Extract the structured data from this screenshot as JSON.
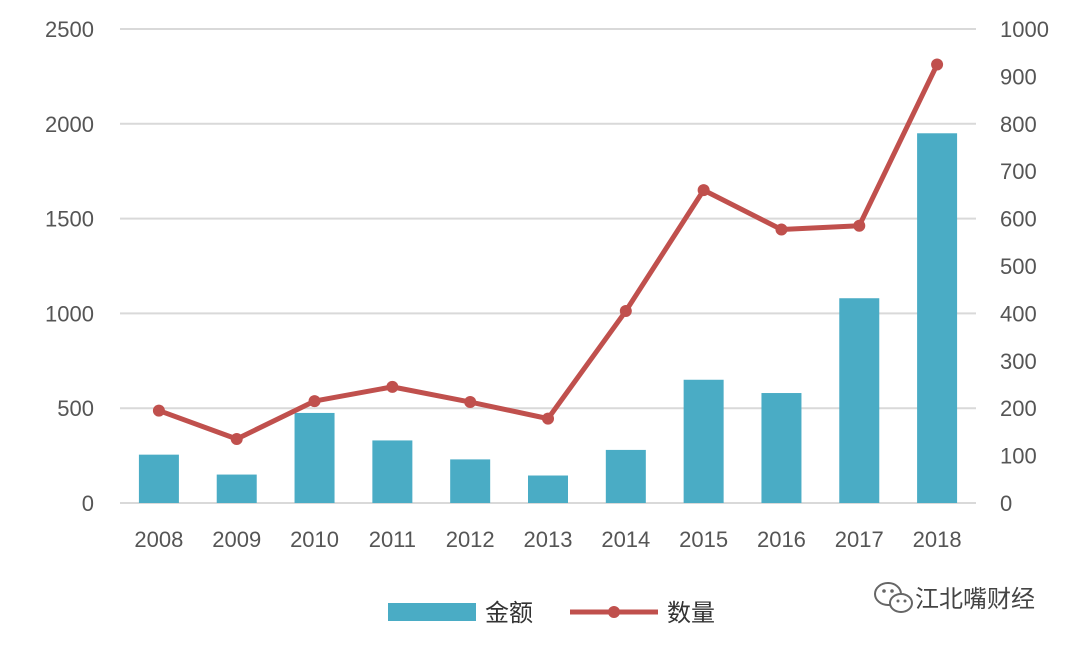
{
  "chart_data": {
    "type": "bar",
    "categories": [
      "2008",
      "2009",
      "2010",
      "2011",
      "2012",
      "2013",
      "2014",
      "2015",
      "2016",
      "2017",
      "2018"
    ],
    "series": [
      {
        "name": "金额",
        "type": "bar",
        "axis": "left",
        "color": "#4AACC5",
        "values": [
          255,
          150,
          475,
          330,
          230,
          145,
          280,
          650,
          580,
          1080,
          1950
        ]
      },
      {
        "name": "数量",
        "type": "line",
        "axis": "right",
        "color": "#C0504D",
        "values": [
          195,
          135,
          215,
          245,
          213,
          178,
          405,
          660,
          577,
          585,
          925
        ]
      }
    ],
    "y_left": {
      "lim": [
        0,
        2500
      ],
      "ticks": [
        "0",
        "500",
        "1000",
        "1500",
        "2000",
        "2500"
      ]
    },
    "y_right": {
      "lim": [
        0,
        1000
      ],
      "ticks": [
        "0",
        "100",
        "200",
        "300",
        "400",
        "500",
        "600",
        "700",
        "800",
        "900",
        "1000"
      ]
    },
    "grid": true,
    "legend": "bottom"
  },
  "watermark": {
    "text": "江北嘴财经",
    "icon": "wechat-icon"
  }
}
